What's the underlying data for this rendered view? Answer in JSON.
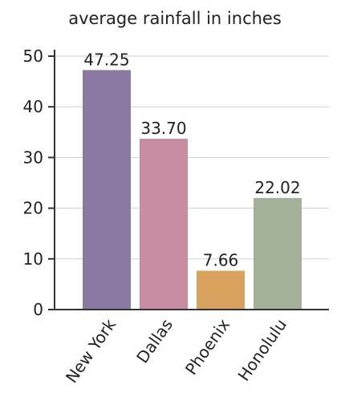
{
  "chart_data": {
    "type": "bar",
    "title": "average rainfall in inches",
    "categories": [
      "New York",
      "Dallas",
      "Phoenix",
      "Honolulu"
    ],
    "values": [
      47.25,
      33.7,
      7.66,
      22.02
    ],
    "value_labels": [
      "47.25",
      "33.70",
      "7.66",
      "22.02"
    ],
    "colors": [
      "#8c7aa3",
      "#c98da3",
      "#d9a35f",
      "#a3b199"
    ],
    "ylim": [
      0,
      50
    ],
    "yticks": [
      0,
      10,
      20,
      30,
      40,
      50
    ],
    "xlabel": "",
    "ylabel": "",
    "grid": true
  }
}
